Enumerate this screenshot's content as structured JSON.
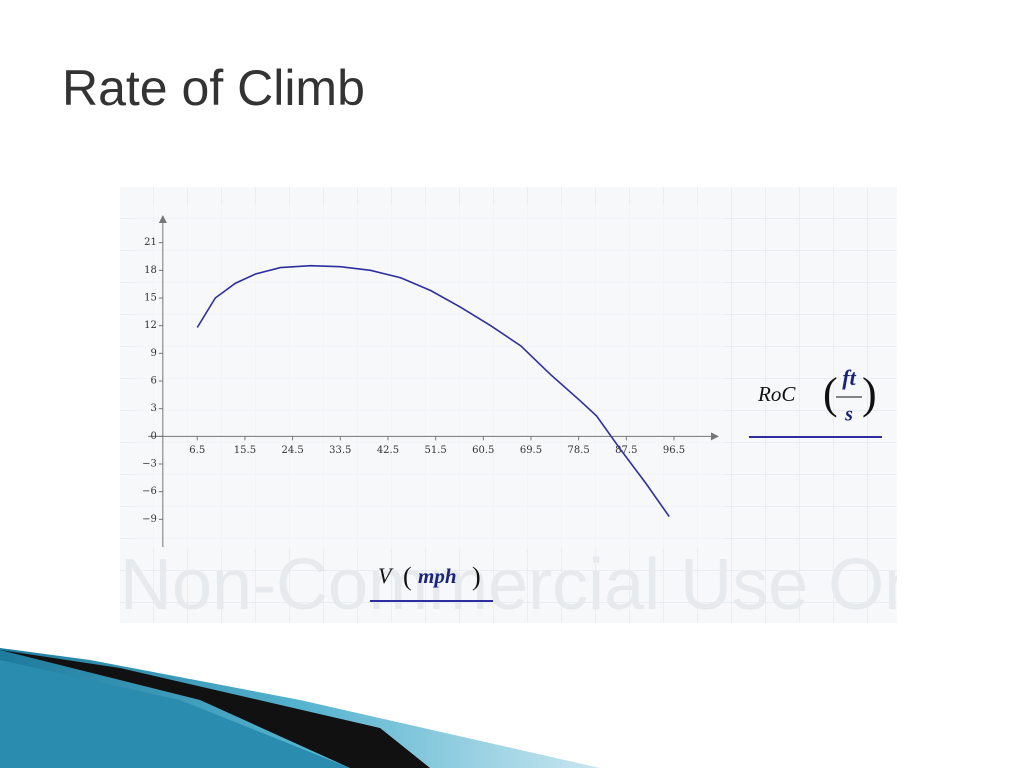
{
  "chart_data": {
    "type": "line",
    "title": "Rate of Climb",
    "ylabel": {
      "symbol": "RoC",
      "unit": {
        "numerator": "ft",
        "denominator": "s"
      }
    },
    "xlabel": {
      "symbol": "V",
      "unit": "mph"
    },
    "watermark": "Non-Commercial Use Only",
    "color": "#2e2ea0",
    "x": [
      6.5,
      9.9,
      13.7,
      17.5,
      22.2,
      27.9,
      33.5,
      39.2,
      44.9,
      50.6,
      56.2,
      61.9,
      67.6,
      73.2,
      78.9,
      81.9,
      86.5,
      91.2,
      95.6
    ],
    "values": [
      11.8,
      15.0,
      16.6,
      17.6,
      18.3,
      18.5,
      18.4,
      18.0,
      17.2,
      15.8,
      14.0,
      12.0,
      9.8,
      6.7,
      3.8,
      2.2,
      -1.5,
      -5.1,
      -8.7
    ],
    "xlim": [
      -2.8,
      105
    ],
    "ylim": [
      -12,
      24
    ],
    "xticks": [
      6.5,
      15.5,
      24.5,
      33.5,
      42.5,
      51.5,
      60.5,
      69.5,
      78.5,
      87.5,
      96.5
    ],
    "yticks": [
      {
        "value": -9,
        "label": "−9"
      },
      {
        "value": -6,
        "label": "−6"
      },
      {
        "value": -3,
        "label": "−3"
      },
      0,
      3,
      6,
      9,
      12,
      15,
      18,
      21
    ]
  }
}
